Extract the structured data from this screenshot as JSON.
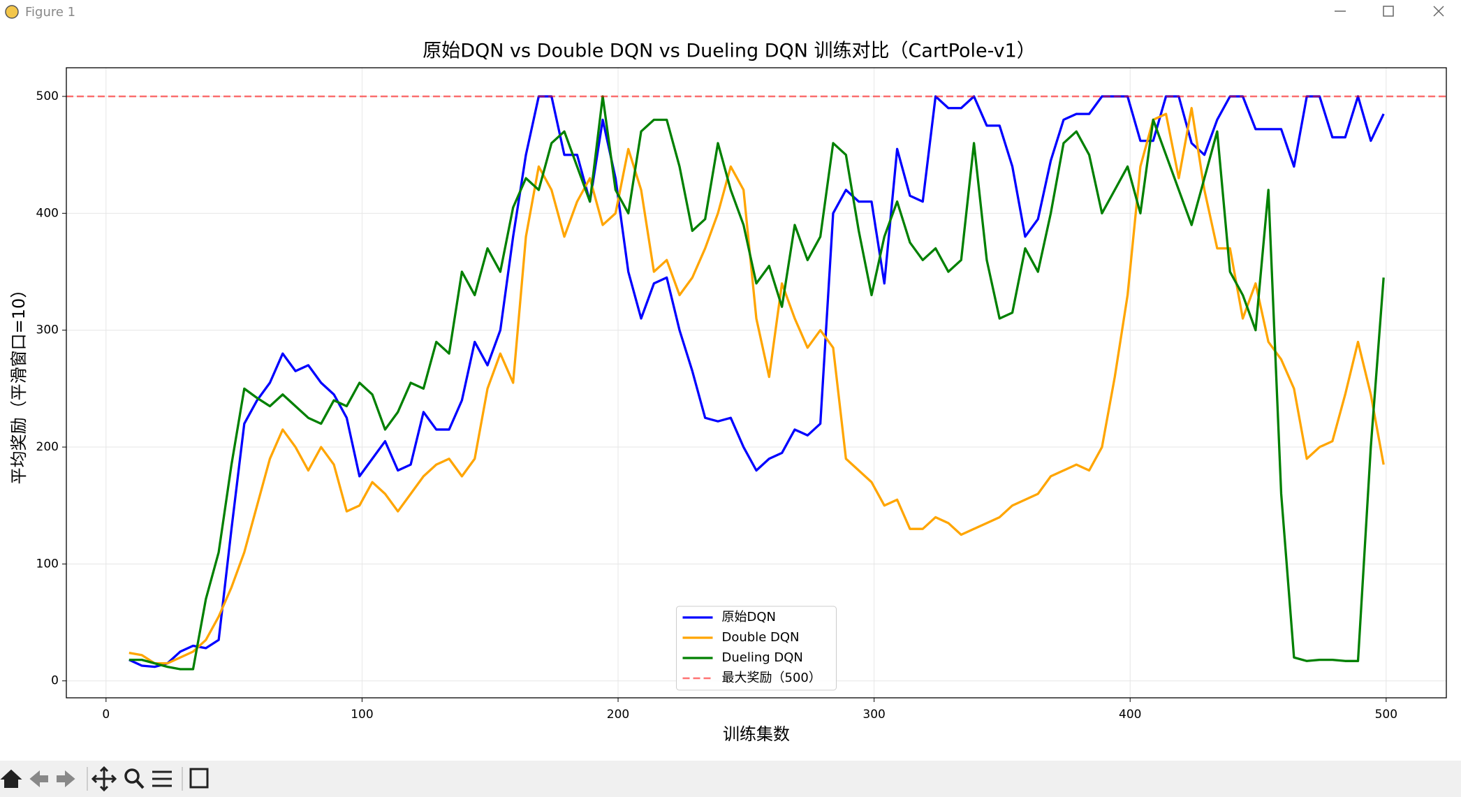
{
  "window": {
    "title": "Figure 1"
  },
  "chart_data": {
    "type": "line",
    "title": "原始DQN vs Double DQN vs Dueling DQN 训练对比（CartPole-v1）",
    "xlabel": "训练集数",
    "ylabel": "平均奖励（平滑窗口=10）",
    "x": [
      9,
      14,
      19,
      24,
      29,
      34,
      39,
      44,
      49,
      54,
      59,
      64,
      69,
      74,
      79,
      84,
      89,
      94,
      99,
      104,
      109,
      114,
      119,
      124,
      129,
      134,
      139,
      144,
      149,
      154,
      159,
      164,
      169,
      174,
      179,
      184,
      189,
      194,
      199,
      204,
      209,
      214,
      219,
      224,
      229,
      234,
      239,
      244,
      249,
      254,
      259,
      264,
      269,
      274,
      279,
      284,
      289,
      294,
      299,
      304,
      309,
      314,
      319,
      324,
      329,
      334,
      339,
      344,
      349,
      354,
      359,
      364,
      369,
      374,
      379,
      384,
      389,
      394,
      399,
      404,
      409,
      414,
      419,
      424,
      429,
      434,
      439,
      444,
      449,
      454,
      459,
      464,
      469,
      474,
      479,
      484,
      489,
      494,
      499
    ],
    "series": [
      {
        "name": "原始DQN",
        "color": "#0000ff",
        "values": [
          18,
          13,
          12,
          15,
          25,
          30,
          28,
          35,
          130,
          220,
          240,
          255,
          280,
          265,
          270,
          255,
          245,
          225,
          175,
          190,
          205,
          180,
          185,
          230,
          215,
          215,
          240,
          290,
          270,
          300,
          380,
          450,
          500,
          500,
          450,
          450,
          410,
          480,
          430,
          350,
          310,
          340,
          345,
          300,
          265,
          225,
          222,
          225,
          200,
          180,
          190,
          195,
          215,
          210,
          220,
          400,
          420,
          410,
          410,
          340,
          455,
          415,
          410,
          500,
          490,
          490,
          500,
          475,
          475,
          440,
          380,
          395,
          445,
          480,
          485,
          485,
          500,
          500,
          500,
          462,
          462,
          500,
          500,
          460,
          450,
          480,
          500,
          500,
          472,
          472,
          472,
          440,
          500,
          500,
          465,
          465,
          500,
          462,
          485
        ]
      },
      {
        "name": "Double DQN",
        "color": "#ffa500",
        "values": [
          24,
          22,
          15,
          15,
          20,
          25,
          35,
          55,
          80,
          110,
          150,
          190,
          215,
          200,
          180,
          200,
          185,
          145,
          150,
          170,
          160,
          145,
          160,
          175,
          185,
          190,
          175,
          190,
          250,
          280,
          255,
          380,
          440,
          420,
          380,
          410,
          430,
          390,
          400,
          455,
          420,
          350,
          360,
          330,
          345,
          370,
          400,
          440,
          420,
          310,
          260,
          340,
          310,
          285,
          300,
          285,
          190,
          180,
          170,
          150,
          155,
          130,
          130,
          140,
          135,
          125,
          130,
          135,
          140,
          150,
          155,
          160,
          175,
          180,
          185,
          180,
          200,
          260,
          330,
          440,
          480,
          485,
          430,
          490,
          420,
          370,
          370,
          310,
          340,
          290,
          275,
          250,
          190,
          200,
          205,
          245,
          290,
          245,
          185
        ]
      },
      {
        "name": "Dueling DQN",
        "color": "#008000",
        "values": [
          18,
          18,
          15,
          12,
          10,
          10,
          70,
          110,
          185,
          250,
          242,
          235,
          245,
          235,
          225,
          220,
          240,
          235,
          255,
          245,
          215,
          230,
          255,
          250,
          290,
          280,
          350,
          330,
          370,
          350,
          405,
          430,
          420,
          460,
          470,
          440,
          410,
          500,
          420,
          400,
          470,
          480,
          480,
          440,
          385,
          395,
          460,
          420,
          390,
          340,
          355,
          320,
          390,
          360,
          380,
          460,
          450,
          385,
          330,
          380,
          410,
          375,
          360,
          370,
          350,
          360,
          460,
          360,
          310,
          315,
          370,
          350,
          400,
          460,
          470,
          450,
          400,
          420,
          440,
          400,
          480,
          450,
          420,
          390,
          430,
          470,
          350,
          330,
          300,
          420,
          160,
          20,
          17,
          18,
          18,
          17,
          17,
          200,
          345
        ]
      }
    ],
    "reference_line": {
      "name": "最大奖励（500）",
      "value": 500,
      "color": "#ff0000"
    },
    "xlim": [
      -15.5,
      523.5
    ],
    "ylim": [
      -14.5,
      524.5
    ],
    "xticks": [
      0,
      100,
      200,
      300,
      400,
      500
    ],
    "yticks": [
      0,
      100,
      200,
      300,
      400,
      500
    ],
    "grid": true,
    "legend": "lower center"
  }
}
